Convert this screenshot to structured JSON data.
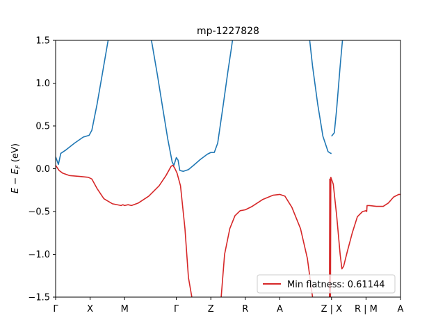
{
  "chart_data": {
    "type": "line",
    "title": "mp-1227828",
    "xlabel": "",
    "ylabel_prefix": "E − E",
    "ylabel_sub": "F",
    "ylabel_suffix": " (eV)",
    "ylim": [
      -1.5,
      1.5
    ],
    "yticks": [
      -1.5,
      -1.0,
      -0.5,
      0.0,
      0.5,
      1.0,
      1.5
    ],
    "ytick_labels": [
      "−1.5",
      "−1.0",
      "−0.5",
      "0.0",
      "0.5",
      "1.0",
      "1.5"
    ],
    "xlim": [
      0,
      10
    ],
    "xticks": [
      0,
      1,
      2,
      3.5,
      4.5,
      5.5,
      6.5,
      8,
      9,
      10
    ],
    "xtick_labels": [
      "Γ",
      "X",
      "M",
      "Γ",
      "Z",
      "R",
      "A",
      "Z | X",
      "R | M",
      "A"
    ],
    "grid": false,
    "legend_position": "lower-right",
    "legend_label": "Min flatness: 0.61144",
    "colors": {
      "blue": "#1f77b4",
      "red": "#d62728"
    },
    "series": [
      {
        "color": "#1f77b4",
        "segments": [
          [
            [
              0,
              0.14
            ],
            [
              0.08,
              0.05
            ],
            [
              0.15,
              0.18
            ],
            [
              0.3,
              0.22
            ],
            [
              0.55,
              0.3
            ],
            [
              0.8,
              0.37
            ],
            [
              0.97,
              0.39
            ],
            [
              1.05,
              0.45
            ],
            [
              1.2,
              0.75
            ],
            [
              1.35,
              1.1
            ],
            [
              1.5,
              1.45
            ],
            [
              1.55,
              1.56
            ]
          ],
          [
            [
              2.75,
              1.56
            ],
            [
              2.8,
              1.45
            ],
            [
              2.95,
              1.1
            ],
            [
              3.1,
              0.72
            ],
            [
              3.25,
              0.35
            ],
            [
              3.38,
              0.08
            ],
            [
              3.43,
              0.04
            ],
            [
              3.5,
              0.13
            ],
            [
              3.55,
              0.1
            ],
            [
              3.6,
              -0.02
            ],
            [
              3.7,
              -0.03
            ],
            [
              3.85,
              -0.01
            ],
            [
              4.0,
              0.04
            ],
            [
              4.2,
              0.11
            ],
            [
              4.4,
              0.17
            ],
            [
              4.5,
              0.19
            ],
            [
              4.6,
              0.19
            ],
            [
              4.7,
              0.3
            ],
            [
              4.85,
              0.72
            ],
            [
              5.0,
              1.15
            ],
            [
              5.1,
              1.42
            ],
            [
              5.15,
              1.56
            ]
          ],
          [
            [
              7.35,
              1.56
            ],
            [
              7.45,
              1.2
            ],
            [
              7.6,
              0.75
            ],
            [
              7.75,
              0.38
            ],
            [
              7.9,
              0.2
            ],
            [
              7.98,
              0.18
            ],
            [
              8.0,
              0.18
            ]
          ],
          [
            [
              8.0,
              0.38
            ],
            [
              8.08,
              0.42
            ],
            [
              8.15,
              0.7
            ],
            [
              8.25,
              1.2
            ],
            [
              8.33,
              1.56
            ]
          ]
        ]
      },
      {
        "color": "#d62728",
        "segments": [
          [
            [
              0,
              0.04
            ],
            [
              0.1,
              -0.02
            ],
            [
              0.2,
              -0.05
            ],
            [
              0.4,
              -0.08
            ],
            [
              0.7,
              -0.09
            ],
            [
              0.95,
              -0.1
            ],
            [
              1.05,
              -0.12
            ],
            [
              1.2,
              -0.23
            ],
            [
              1.4,
              -0.35
            ],
            [
              1.65,
              -0.41
            ],
            [
              1.9,
              -0.43
            ],
            [
              1.95,
              -0.42
            ],
            [
              2.0,
              -0.43
            ],
            [
              2.1,
              -0.42
            ],
            [
              2.2,
              -0.43
            ],
            [
              2.4,
              -0.4
            ],
            [
              2.7,
              -0.32
            ],
            [
              3.0,
              -0.2
            ],
            [
              3.2,
              -0.08
            ],
            [
              3.35,
              0.03
            ],
            [
              3.4,
              0.04
            ],
            [
              3.45,
              0.01
            ],
            [
              3.52,
              -0.05
            ],
            [
              3.62,
              -0.2
            ],
            [
              3.75,
              -0.7
            ],
            [
              3.85,
              -1.27
            ],
            [
              3.95,
              -1.5
            ]
          ],
          [
            [
              4.8,
              -1.5
            ],
            [
              4.9,
              -1.0
            ],
            [
              5.05,
              -0.7
            ],
            [
              5.2,
              -0.55
            ],
            [
              5.35,
              -0.49
            ],
            [
              5.5,
              -0.48
            ],
            [
              5.7,
              -0.44
            ],
            [
              6.0,
              -0.36
            ],
            [
              6.3,
              -0.31
            ],
            [
              6.5,
              -0.3
            ],
            [
              6.65,
              -0.32
            ],
            [
              6.85,
              -0.45
            ],
            [
              7.1,
              -0.7
            ],
            [
              7.3,
              -1.05
            ],
            [
              7.45,
              -1.5
            ]
          ],
          [
            [
              7.93,
              -1.5
            ],
            [
              7.94,
              -1.5
            ],
            [
              7.95,
              -0.12
            ],
            [
              7.96,
              -1.5
            ]
          ],
          [
            [
              7.97,
              -1.5
            ],
            [
              7.98,
              -0.1
            ],
            [
              8.05,
              -0.18
            ],
            [
              8.15,
              -0.55
            ],
            [
              8.25,
              -1.0
            ],
            [
              8.3,
              -1.17
            ],
            [
              8.35,
              -1.14
            ],
            [
              8.45,
              -0.98
            ],
            [
              8.6,
              -0.75
            ],
            [
              8.75,
              -0.56
            ],
            [
              8.9,
              -0.5
            ],
            [
              9.0,
              -0.49
            ],
            [
              9.02,
              -0.5
            ],
            [
              9.03,
              -0.43
            ],
            [
              9.1,
              -0.43
            ],
            [
              9.3,
              -0.44
            ],
            [
              9.5,
              -0.44
            ],
            [
              9.65,
              -0.4
            ],
            [
              9.8,
              -0.33
            ],
            [
              9.95,
              -0.3
            ],
            [
              10.0,
              -0.3
            ]
          ]
        ]
      }
    ]
  }
}
